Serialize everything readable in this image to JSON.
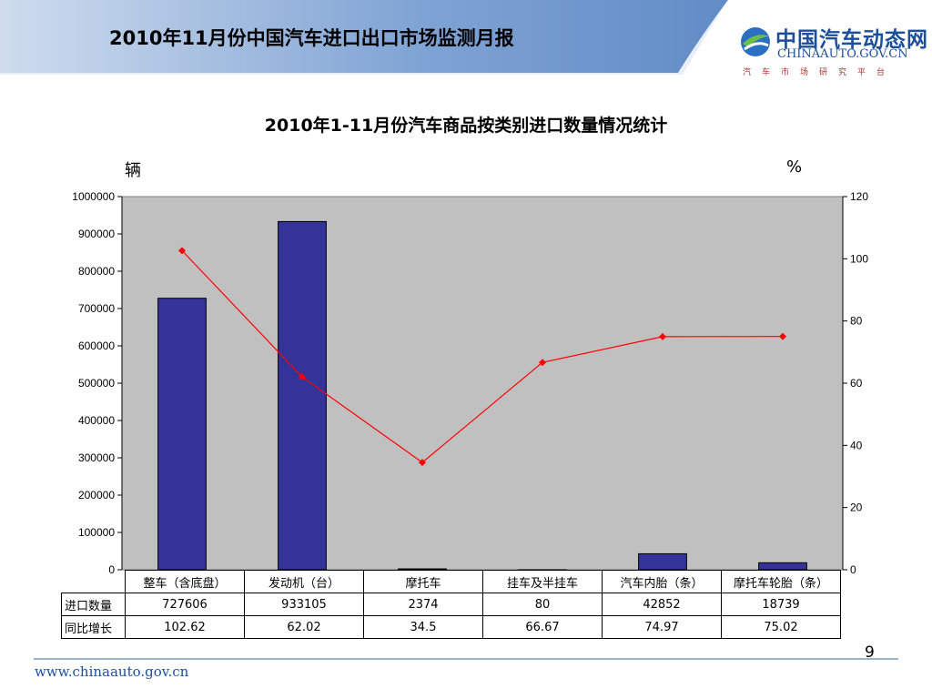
{
  "header": {
    "title": "2010年11月份中国汽车进口出口市场监测月报",
    "logo_main": "中国汽车动态网",
    "logo_domain": "CHINAAUTO.GOV.CN",
    "logo_sub": "汽车市场研究平台",
    "colors": {
      "band_dark": "#5b86c2",
      "band_light": "#e8eef8",
      "logo_blue": "#1b4f9c"
    }
  },
  "chart_data": {
    "type": "bar",
    "title": "2010年1-11月份汽车商品按类别进口数量情况统计",
    "ylabel_left": "辆",
    "ylabel_right": "%",
    "categories": [
      "整车（含底盘）",
      "发动机（台）",
      "摩托车",
      "挂车及半挂车",
      "汽车内胎（条）",
      "摩托车轮胎（条）"
    ],
    "series": [
      {
        "name": "进口数量",
        "type": "bar",
        "axis": "left",
        "values": [
          727606,
          933105,
          2374,
          80,
          42852,
          18739
        ],
        "color": "#333399"
      },
      {
        "name": "同比增长",
        "type": "line",
        "axis": "right",
        "values": [
          102.62,
          62.02,
          34.5,
          66.67,
          74.97,
          75.02
        ],
        "color": "#ff0000"
      }
    ],
    "table_values": {
      "进口数量": [
        "727606",
        "933105",
        "2374",
        "80",
        "42852",
        "18739"
      ],
      "同比增长": [
        "102.62",
        "62.02",
        "34.5",
        "66.67",
        "74.97",
        "75.02"
      ]
    },
    "ylim_left": [
      0,
      1000000
    ],
    "yticks_left": [
      0,
      100000,
      200000,
      300000,
      400000,
      500000,
      600000,
      700000,
      800000,
      900000,
      1000000
    ],
    "ylim_right": [
      0,
      120
    ],
    "yticks_right": [
      0,
      20,
      40,
      60,
      80,
      100,
      120
    ],
    "grid": false,
    "plot_background": "#c0c0c0",
    "legend": "data-table"
  },
  "footer": {
    "url": "www.chinaauto.gov.cn",
    "page_number": "9"
  }
}
